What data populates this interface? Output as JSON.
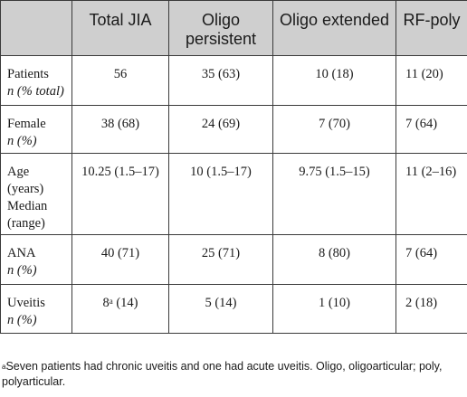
{
  "table": {
    "headers": [
      "",
      "Total JIA",
      "Oligo persistent",
      "Oligo extended",
      "RF-poly"
    ],
    "rows": [
      {
        "label": "Patients",
        "sublabel": "n (% total)",
        "cells": [
          "56",
          "35 (63)",
          "10 (18)",
          "11 (20)"
        ]
      },
      {
        "label": "Female",
        "sublabel": "n (%)",
        "cells": [
          "38 (68)",
          "24 (69)",
          "7 (70)",
          "7 (64)"
        ]
      },
      {
        "label": "Age (years) Median (range)",
        "sublabel": "",
        "cells": [
          "10.25 (1.5–17)",
          "10 (1.5–17)",
          "9.75 (1.5–15)",
          "11 (2–16)"
        ]
      },
      {
        "label": "ANA",
        "sublabel": "n (%)",
        "cells": [
          "40 (71)",
          "25 (71)",
          "8 (80)",
          "7 (64)"
        ]
      },
      {
        "label": "Uveitis",
        "sublabel": "n (%)",
        "cells": [
          "8",
          "5 (14)",
          "1 (10)",
          "2 (18)"
        ],
        "first_cell_sup": "a",
        "first_cell_rest": " (14)"
      }
    ]
  },
  "footnote": {
    "marker": "a",
    "text": "Seven patients had chronic uveitis and one had acute uveitis. Oligo, oligoarticular; poly, polyarticular."
  }
}
